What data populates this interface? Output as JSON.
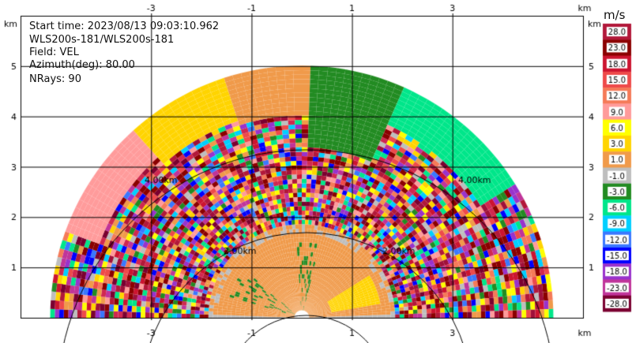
{
  "info": {
    "start_time": "Start time: 2023/08/13 09:03:10.962",
    "radar": "WLS200s-181/WLS200s-181",
    "field": "Field: VEL",
    "azimuth": "Azimuth(deg): 80.00",
    "nrays": "NRays: 90"
  },
  "colorbar": {
    "unit": "m/s",
    "labels": [
      "28.0",
      "23.0",
      "18.0",
      "15.0",
      "12.0",
      "9.0",
      "6.0",
      "3.0",
      "1.0",
      "-1.0",
      "-3.0",
      "-6.0",
      "-9.0",
      "-12.0",
      "-15.0",
      "-18.0",
      "-23.0",
      "-28.0"
    ],
    "colors": [
      "#b2183a",
      "#8b0000",
      "#cc1430",
      "#ee4a4a",
      "#f57a58",
      "#ff9b9b",
      "#ffff00",
      "#ffd400",
      "#f09a4a",
      "#bebebe",
      "#228b22",
      "#00e68a",
      "#00cfff",
      "#3a78ff",
      "#0000ff",
      "#9932cc",
      "#c0349a",
      "#7a0030"
    ]
  },
  "chart_data": {
    "type": "heatmap",
    "title": "",
    "xlabel": "km",
    "ylabel": "km",
    "xlim": [
      -5.6,
      5.6
    ],
    "ylim": [
      0,
      6.0
    ],
    "x_ticks": [
      "-3",
      "-1",
      "1",
      "3"
    ],
    "y_ticks": [
      "1",
      "2",
      "3",
      "4",
      "5"
    ],
    "range_ring_labels": [
      "2.00km",
      "4.00km"
    ],
    "range_rings_km": [
      2,
      4,
      6
    ],
    "max_range_km": 5.0,
    "grid": true,
    "legend": "colorbar right",
    "regions": [
      {
        "name": "yellow",
        "value": 9.0,
        "az_from": -70,
        "az_to": -42,
        "r_from": 4.3,
        "r_to": 5.0
      },
      {
        "name": "orange",
        "value": 3.0,
        "az_from": -42,
        "az_to": -18,
        "r_from": 4.1,
        "r_to": 5.1
      },
      {
        "name": "gray",
        "value": 0.0,
        "az_from": -18,
        "az_to": 3,
        "r_from": 4.0,
        "r_to": 5.1
      },
      {
        "name": "darkgreen",
        "value": -3.0,
        "az_from": 3,
        "az_to": 24,
        "r_from": 3.4,
        "r_to": 5.1
      },
      {
        "name": "teal",
        "value": -6.0,
        "az_from": 24,
        "az_to": 58,
        "r_from": 4.2,
        "r_to": 5.0
      },
      {
        "name": "near-field gray",
        "value": 0.0,
        "az_from": -88,
        "az_to": 88,
        "r_from": 0.0,
        "r_to": 1.9
      },
      {
        "name": "orange patch",
        "value": 3.0,
        "az_from": 58,
        "az_to": 80,
        "r_from": 0.6,
        "r_to": 1.6
      }
    ]
  }
}
